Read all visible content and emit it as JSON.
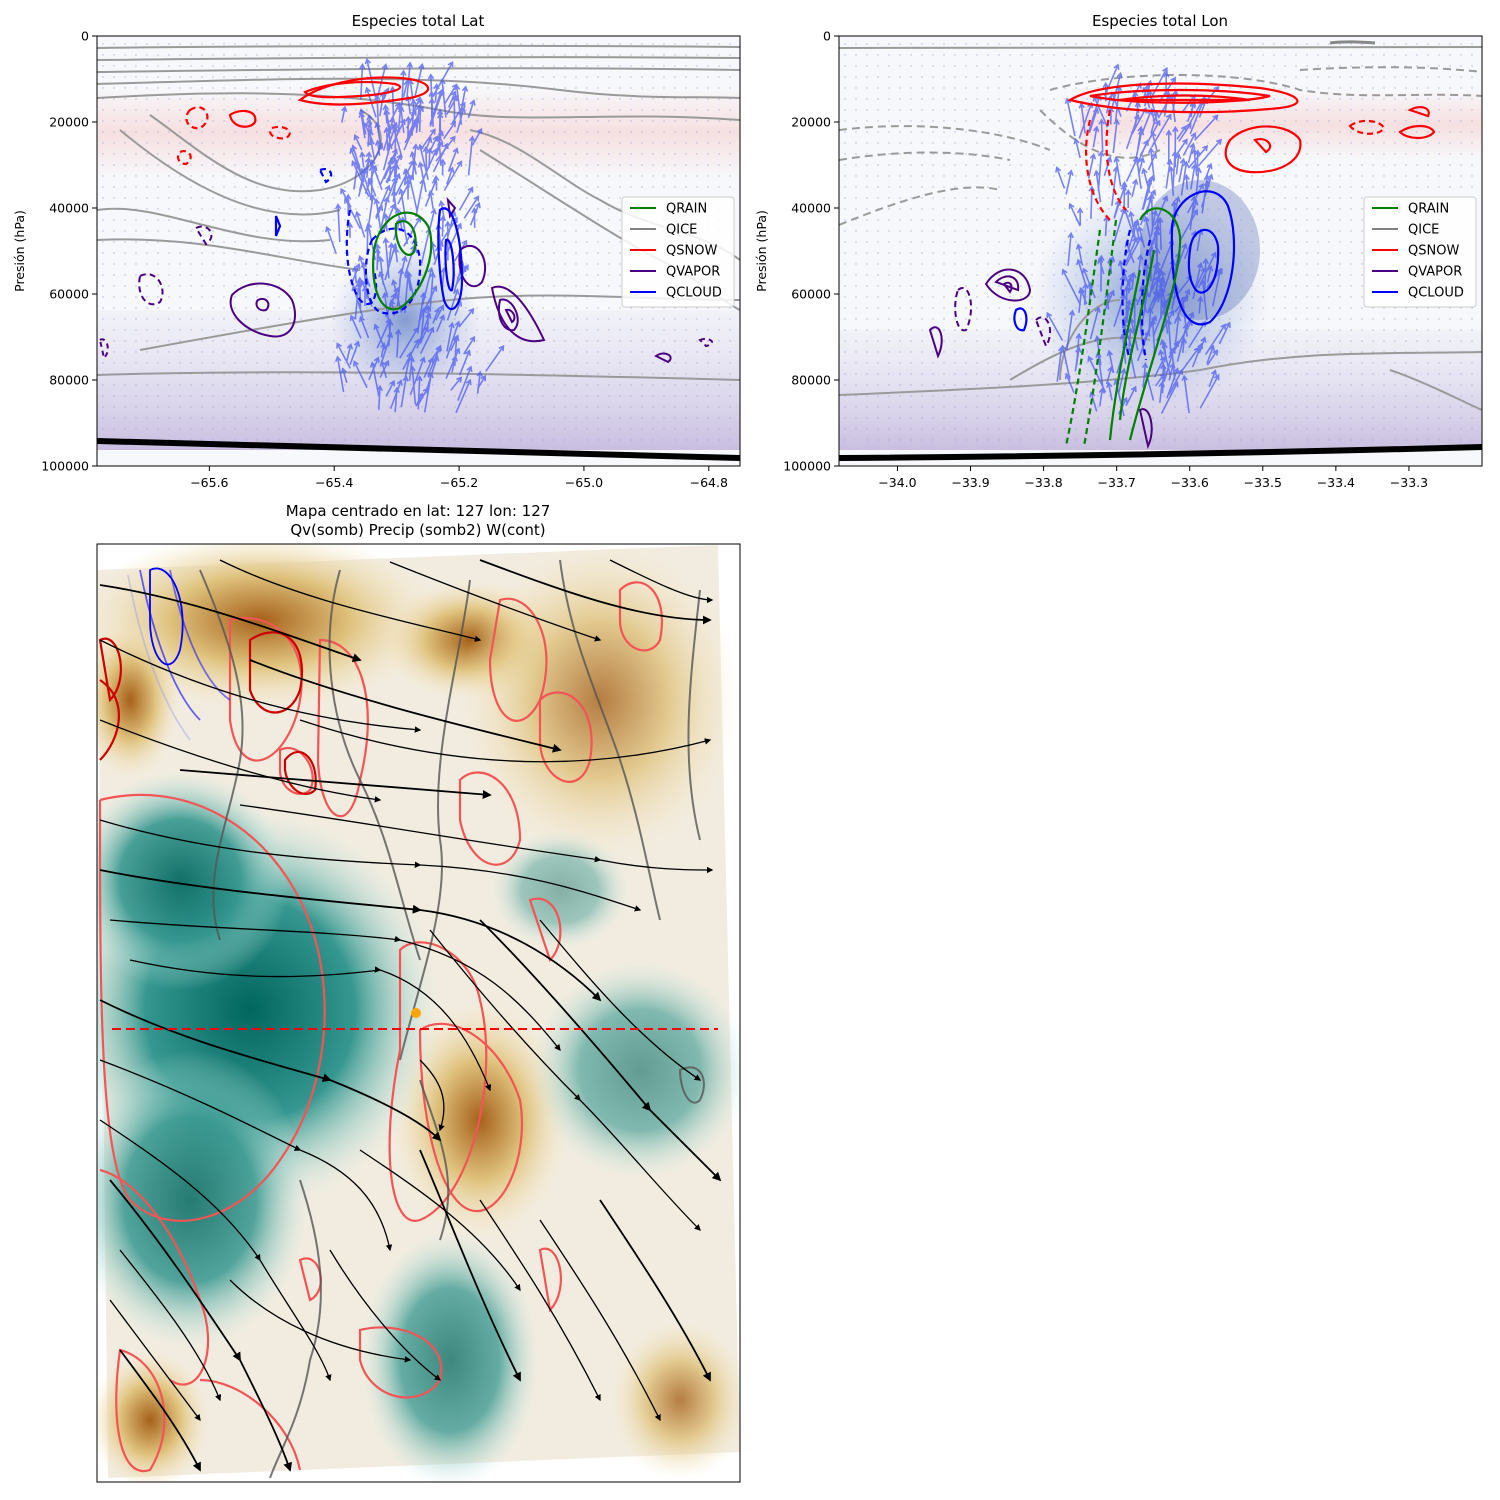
{
  "chart_data": [
    {
      "type": "contour",
      "title": "Especies total Lat",
      "ylabel": "Presión (hPa)",
      "xlabel": "",
      "xlim": [
        -65.78,
        -64.75
      ],
      "ylim": [
        100000,
        0
      ],
      "xticks": [
        -65.6,
        -65.4,
        -65.2,
        -65.0,
        -64.8
      ],
      "xtick_labels": [
        "−65.6",
        "−65.4",
        "−65.2",
        "−65.0",
        "−64.8"
      ],
      "yticks": [
        0,
        20000,
        40000,
        60000,
        80000,
        100000
      ],
      "ytick_labels": [
        "0",
        "20000",
        "40000",
        "60000",
        "80000",
        "100000"
      ],
      "legend_position": "center-right",
      "series": [
        {
          "name": "QRAIN",
          "color": "#008000"
        },
        {
          "name": "QICE",
          "color": "#808080"
        },
        {
          "name": "QSNOW",
          "color": "#ff0000"
        },
        {
          "name": "QVAPOR",
          "color": "#4b0082"
        },
        {
          "name": "QCLOUD",
          "color": "#0000ff"
        }
      ]
    },
    {
      "type": "contour",
      "title": "Especies total Lon",
      "ylabel": "Presión (hPa)",
      "xlabel": "",
      "xlim": [
        -34.08,
        -33.2
      ],
      "ylim": [
        100000,
        0
      ],
      "xticks": [
        -34.0,
        -33.9,
        -33.8,
        -33.7,
        -33.6,
        -33.5,
        -33.4,
        -33.3
      ],
      "xtick_labels": [
        "−34.0",
        "−33.9",
        "−33.8",
        "−33.7",
        "−33.6",
        "−33.5",
        "−33.4",
        "−33.3"
      ],
      "yticks": [
        0,
        20000,
        40000,
        60000,
        80000,
        100000
      ],
      "ytick_labels": [
        "0",
        "20000",
        "40000",
        "60000",
        "80000",
        "100000"
      ],
      "legend_position": "center-right",
      "series": [
        {
          "name": "QRAIN",
          "color": "#008000"
        },
        {
          "name": "QICE",
          "color": "#808080"
        },
        {
          "name": "QSNOW",
          "color": "#ff0000"
        },
        {
          "name": "QVAPOR",
          "color": "#4b0082"
        },
        {
          "name": "QCLOUD",
          "color": "#0000ff"
        }
      ]
    },
    {
      "type": "heatmap",
      "title": "Mapa centrado en lat: 127 lon: 127",
      "subtitle": "Qv(somb) Precip (somb2) W(cont)",
      "colormap": "BrBG"
    }
  ]
}
